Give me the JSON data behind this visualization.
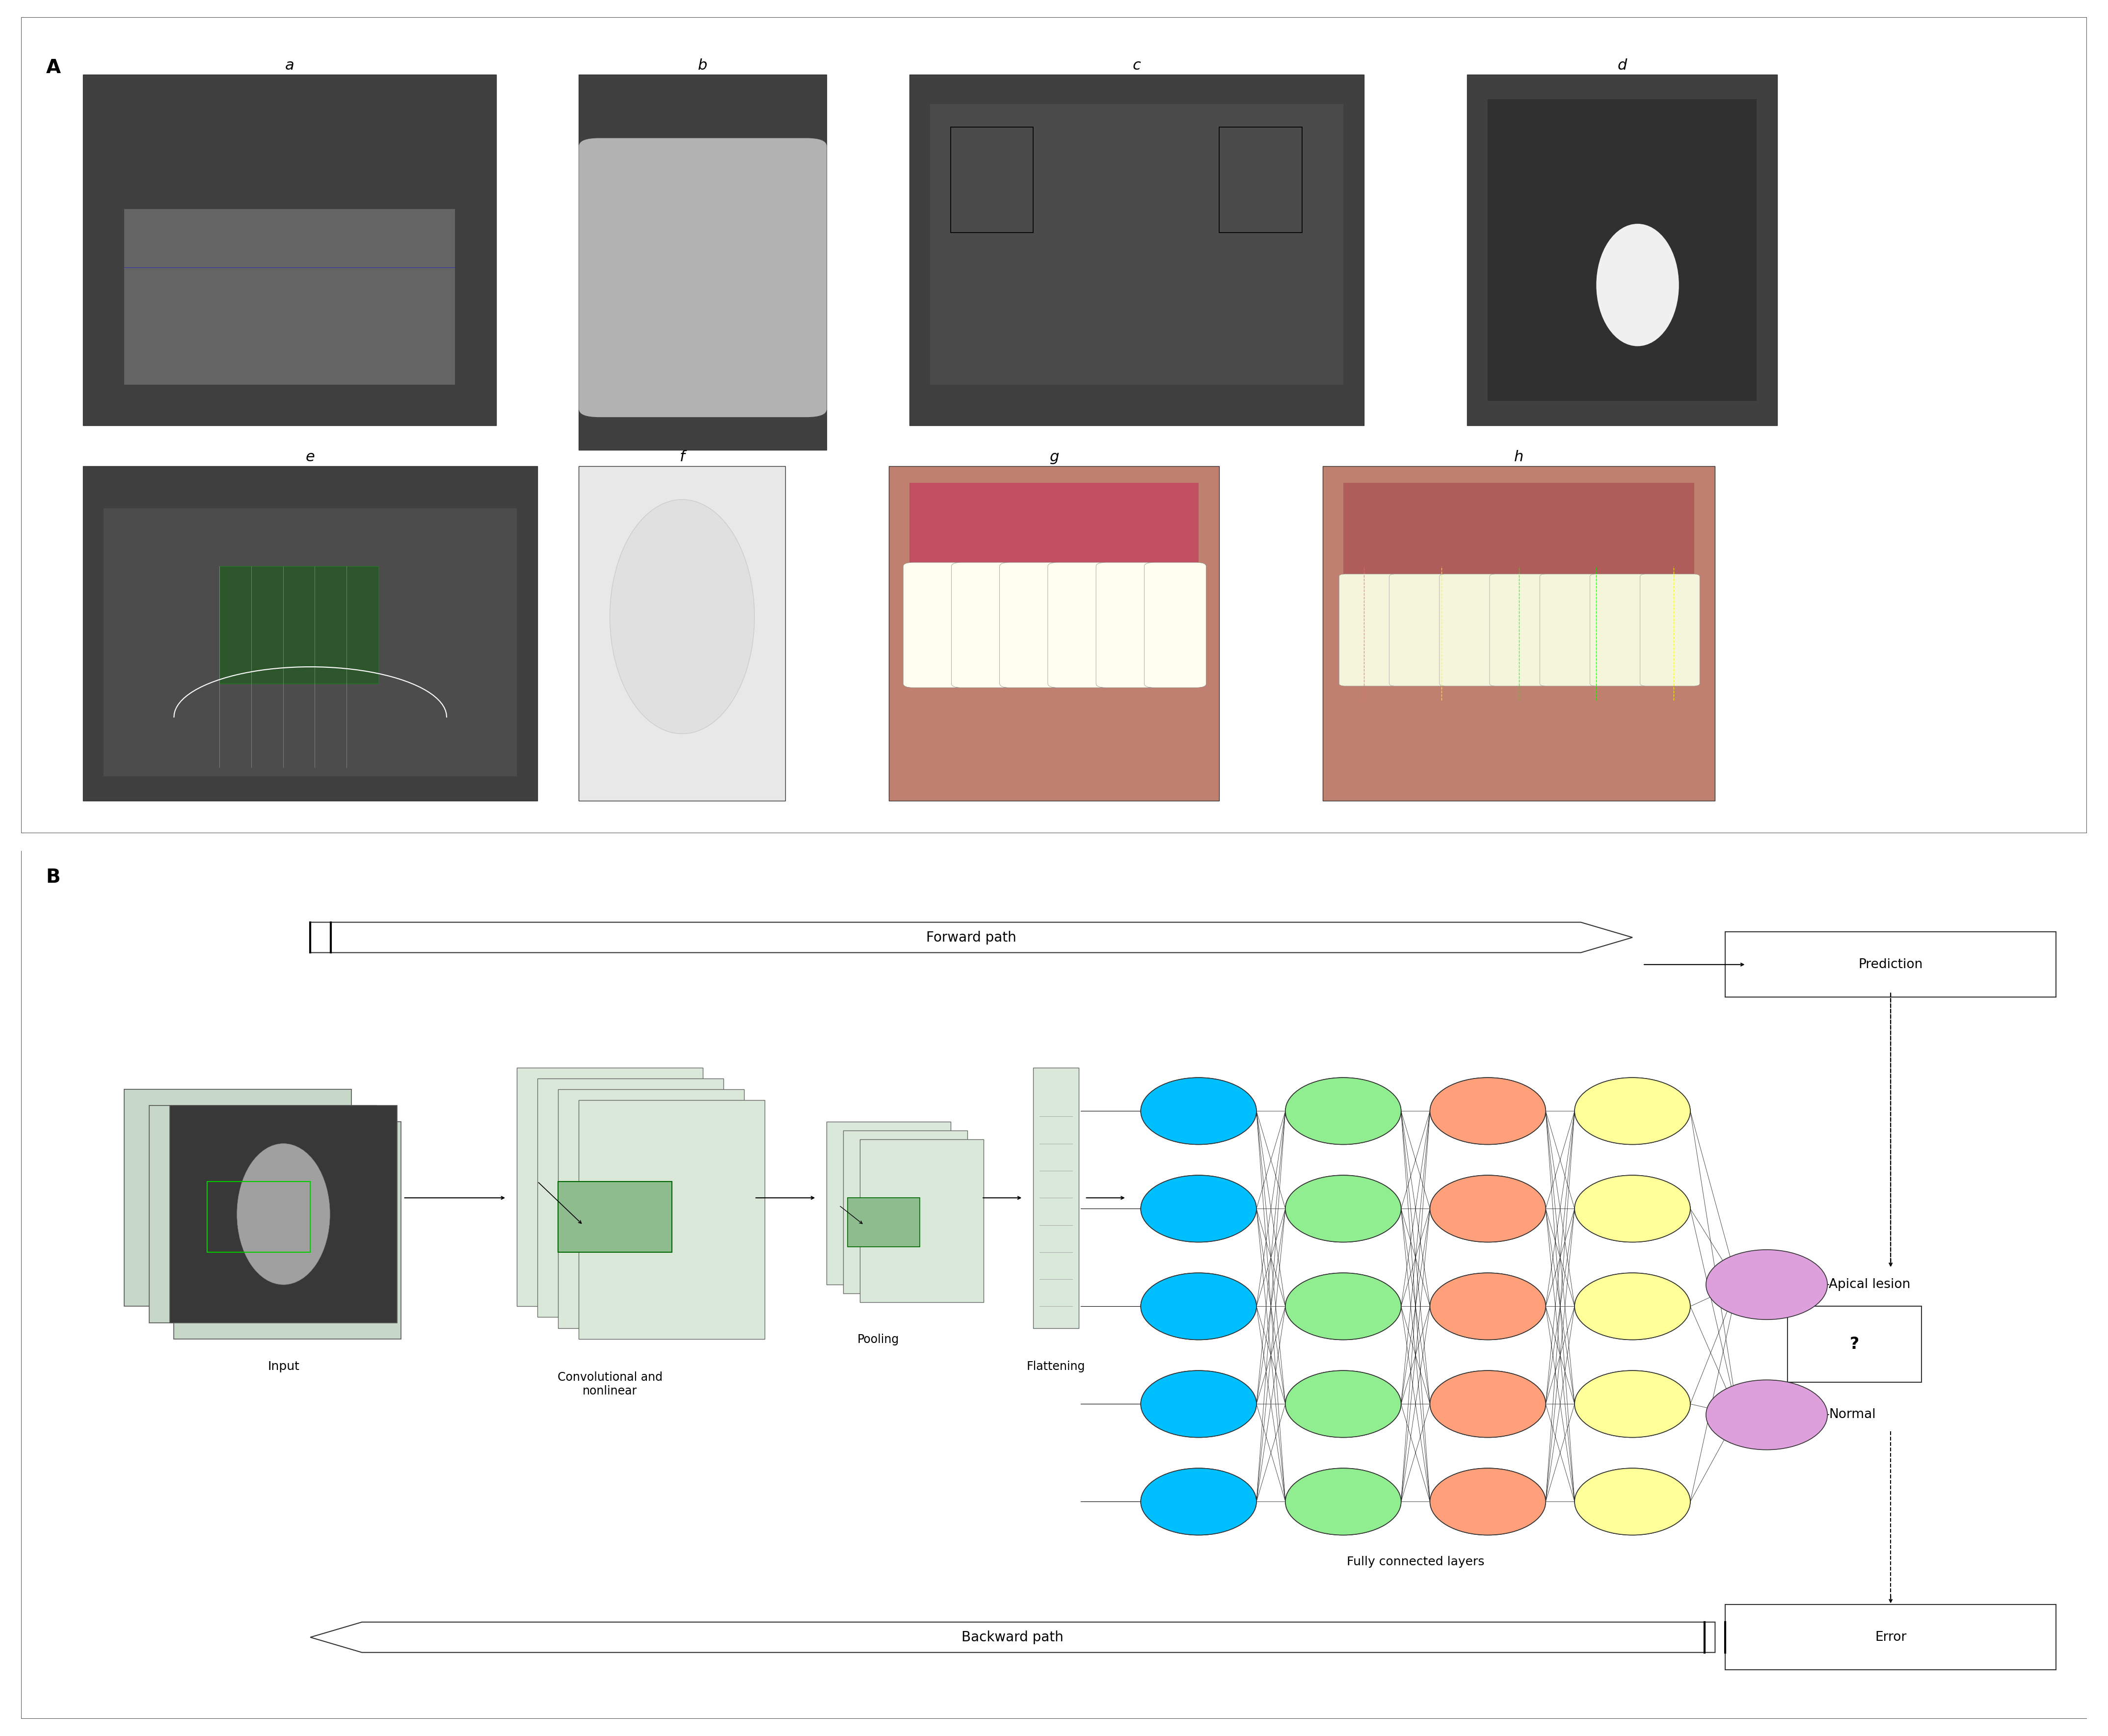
{
  "panel_A_label": "A",
  "panel_B_label": "B",
  "sub_labels": [
    "a",
    "b",
    "c",
    "d",
    "e",
    "f",
    "g",
    "h"
  ],
  "forward_path_text": "Forward path",
  "backward_path_text": "Backward path",
  "input_label": "Input",
  "conv_label": "Convolutional and\nnonlinear",
  "pool_label": "Pooling",
  "flatten_label": "Flattening",
  "fc_label": "Fully connected layers",
  "prediction_label": "Prediction",
  "apical_label": "Apical lesion",
  "normal_label": "Normal",
  "error_label": "Error",
  "question_mark": "?",
  "node_colors": {
    "cyan": "#00BFFF",
    "green": "#90EE90",
    "orange": "#FFA07A",
    "yellow": "#FFFF99",
    "purple": "#DDA0DD"
  },
  "bg_color": "#FFFFFF",
  "box_color": "#F0F0F0",
  "border_color": "#333333",
  "arrow_color": "#333333",
  "green_rect": "#8FBC8F",
  "layer_bg": "#D9E8D9"
}
